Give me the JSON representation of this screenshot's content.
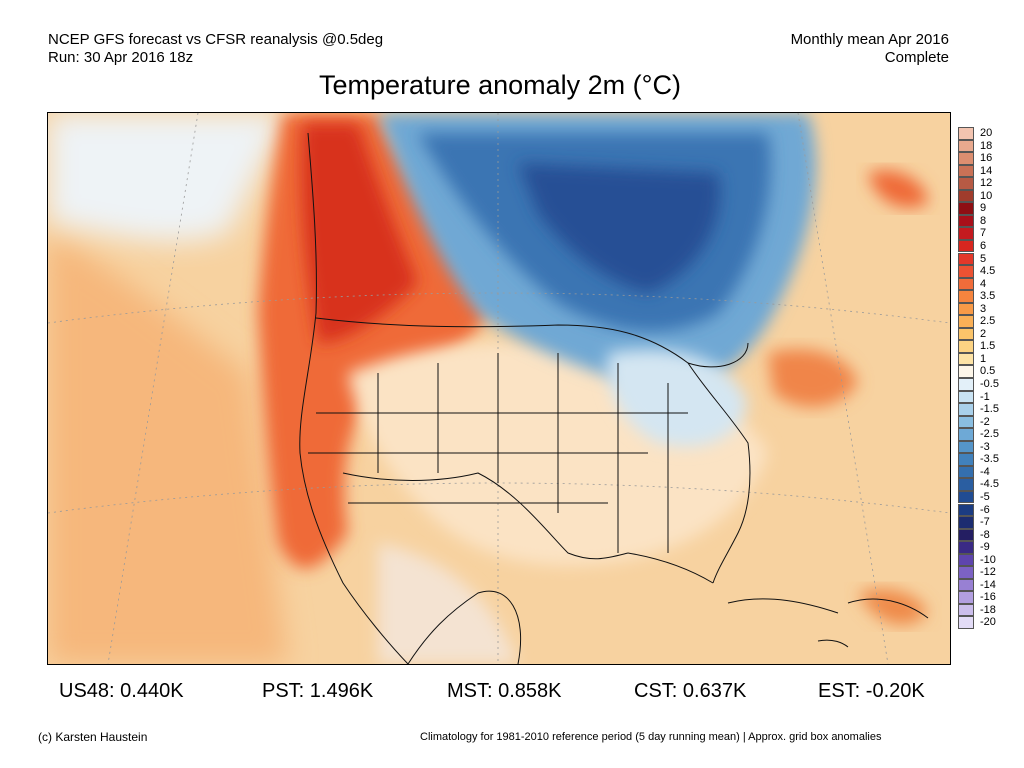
{
  "header": {
    "line1_left": "NCEP GFS forecast vs CFSR reanalysis @0.5deg",
    "line2_left": "Run: 30 Apr 2016 18z",
    "line1_right": "Monthly mean Apr 2016",
    "line2_right": "Complete"
  },
  "title": "Temperature anomaly 2m (°C)",
  "colorbar": {
    "labels": [
      "20",
      "18",
      "16",
      "14",
      "12",
      "10",
      "9",
      "8",
      "7",
      "6",
      "5",
      "4.5",
      "4",
      "3.5",
      "3",
      "2.5",
      "2",
      "1.5",
      "1",
      "0.5",
      "-0.5",
      "-1",
      "-1.5",
      "-2",
      "-2.5",
      "-3",
      "-3.5",
      "-4",
      "-4.5",
      "-5",
      "-6",
      "-7",
      "-8",
      "-9",
      "-10",
      "-12",
      "-14",
      "-16",
      "-18",
      "-20"
    ],
    "colors": [
      "#f3c4b0",
      "#e8a98e",
      "#dc8e70",
      "#c97156",
      "#b75a44",
      "#a03c2c",
      "#8e0f14",
      "#a8101a",
      "#c41a1f",
      "#d8261f",
      "#e3382a",
      "#ec5233",
      "#f16c3a",
      "#f5843e",
      "#f89a47",
      "#fab057",
      "#fbc46a",
      "#fcd383",
      "#fde3a6",
      "#fdf6e9",
      "#e3f0f9",
      "#c9e3f3",
      "#a9d0ea",
      "#8abee1",
      "#6ea9d6",
      "#5595c9",
      "#4181bc",
      "#346fae",
      "#2a5ea1",
      "#214c93",
      "#1b3c82",
      "#1c2c70",
      "#241e62",
      "#3a2a85",
      "#5e45ad",
      "#7c62c4",
      "#9880d3",
      "#b29fe0",
      "#cbbeec",
      "#e3dcf7"
    ]
  },
  "stats": [
    {
      "label": "US48: 0.440K"
    },
    {
      "label": "PST: 1.496K"
    },
    {
      "label": "MST: 0.858K"
    },
    {
      "label": "CST: 0.637K"
    },
    {
      "label": "EST: -0.20K"
    }
  ],
  "footer": {
    "credit": "(c) Karsten Haustein",
    "note": "Climatology for 1981-2010 reference period (5 day running mean) | Approx. grid box anomalies"
  }
}
